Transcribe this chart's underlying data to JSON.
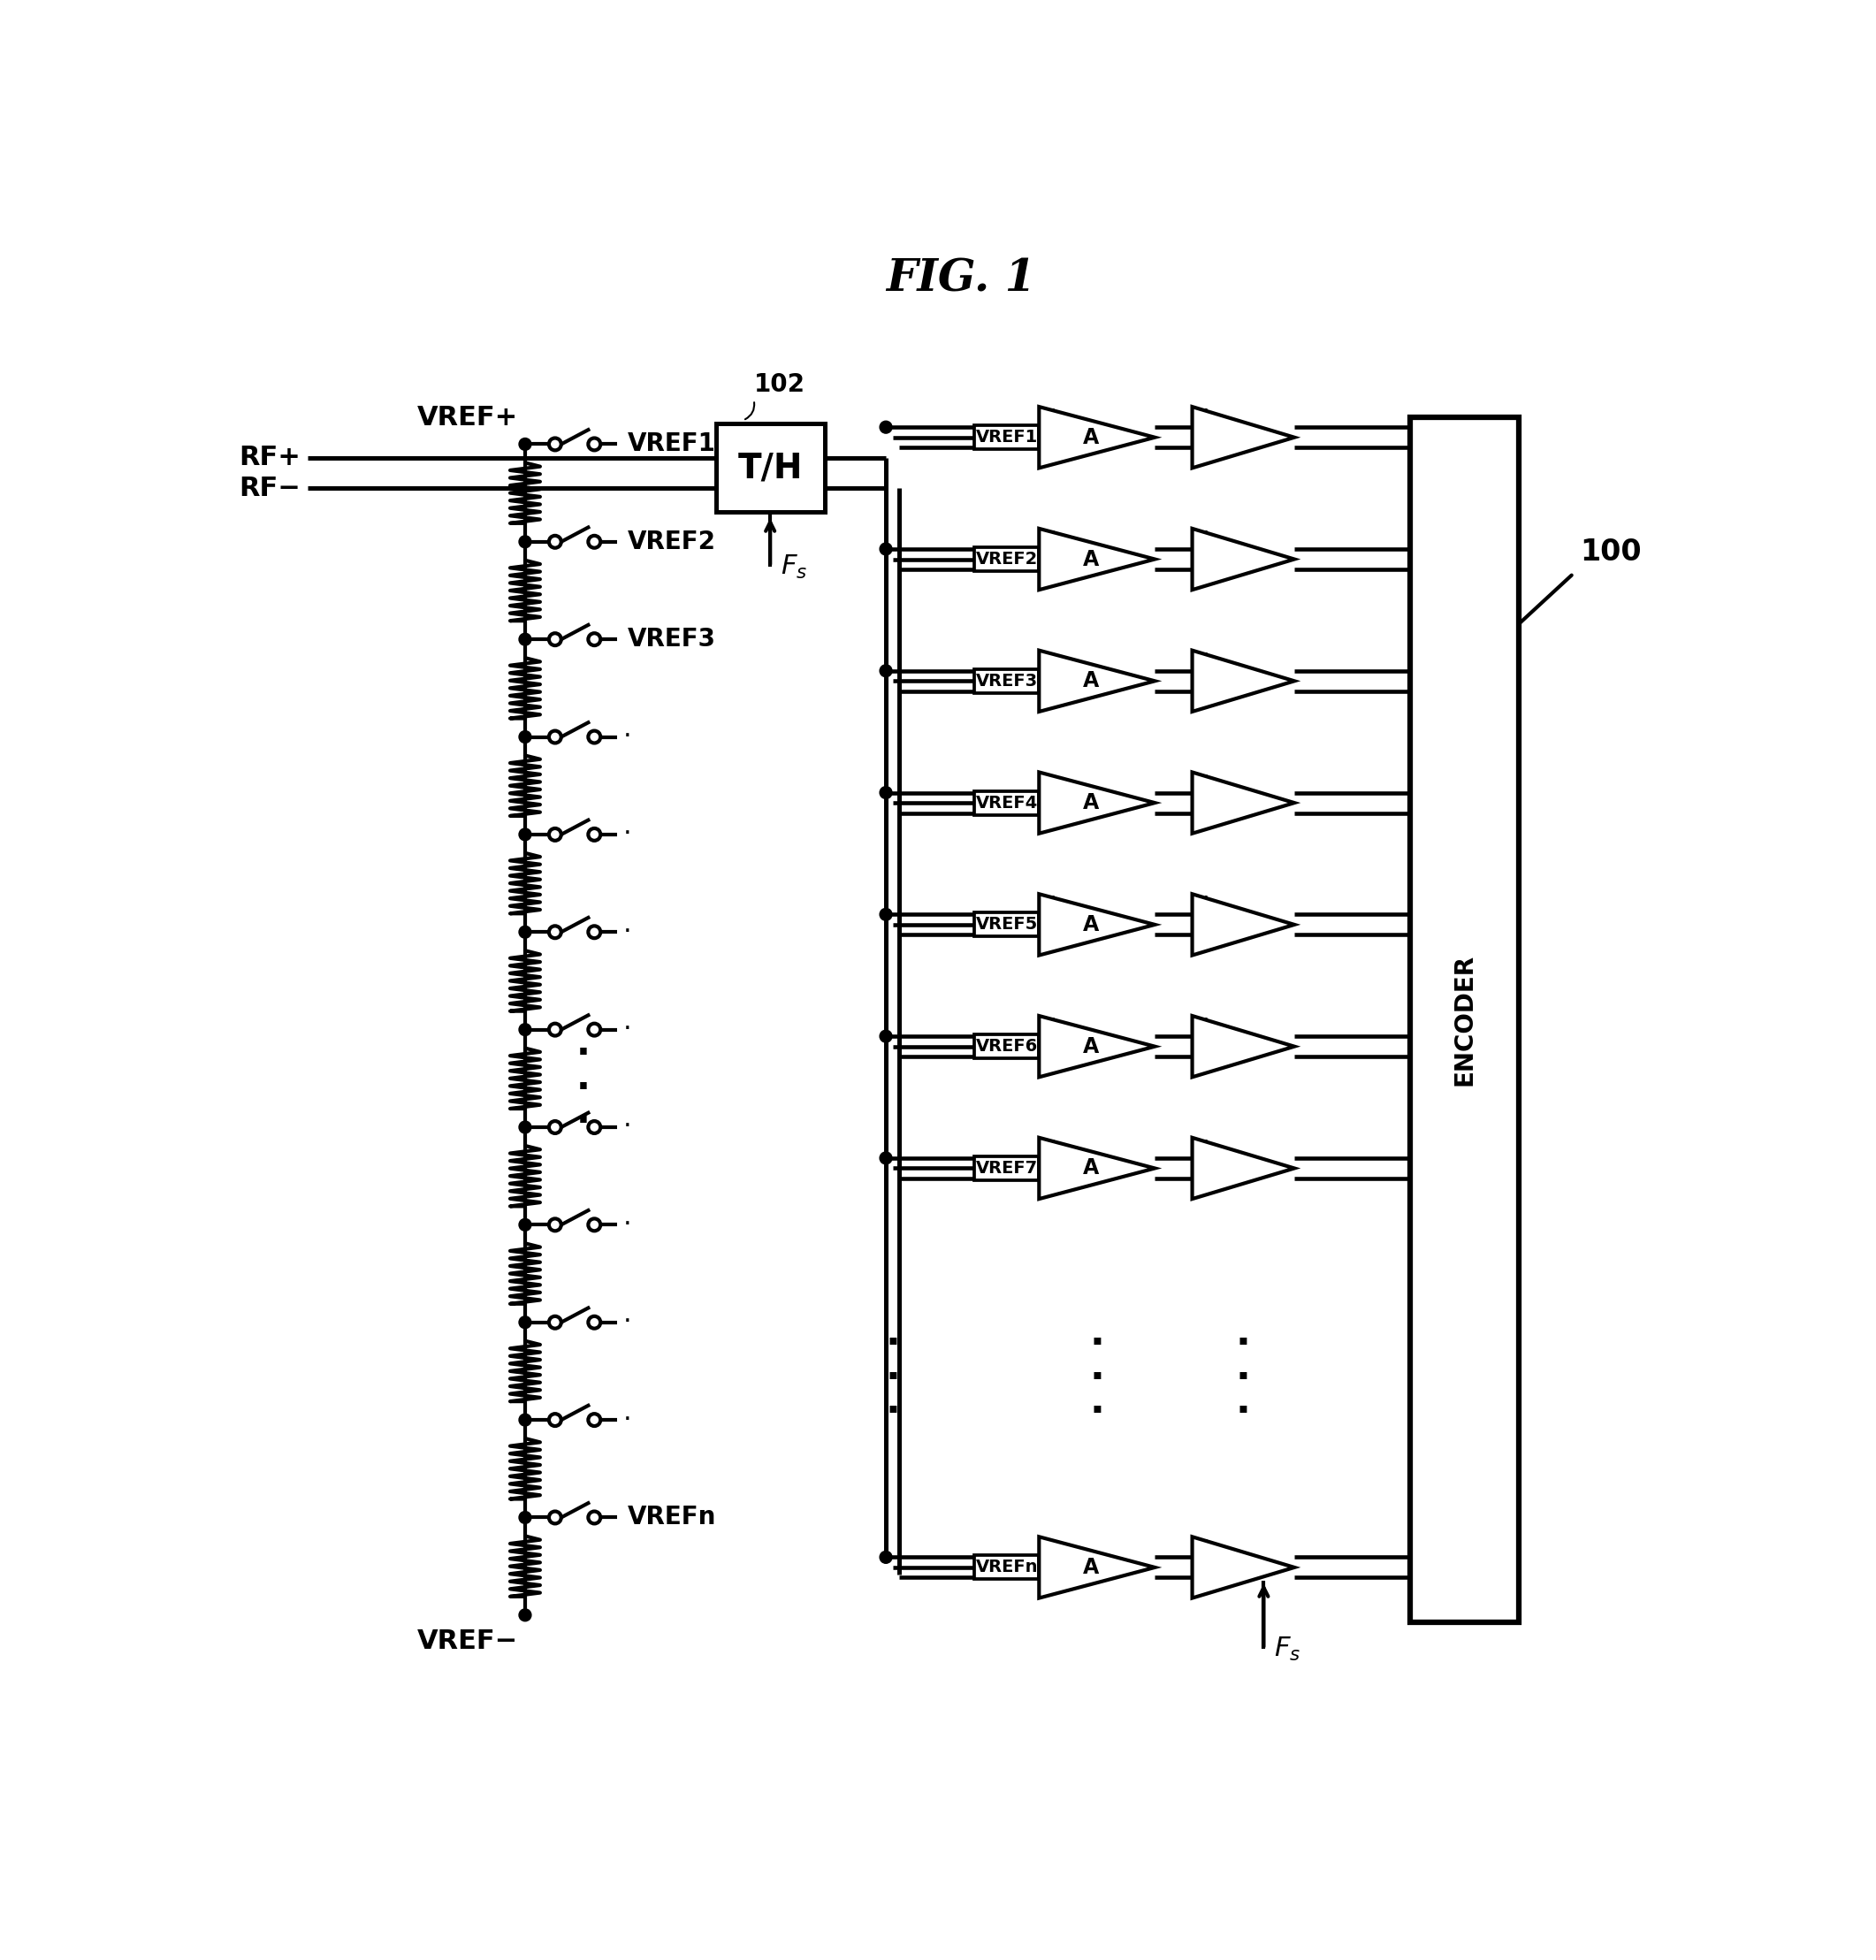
{
  "title": "FIG. 1",
  "label_100": "100",
  "label_102": "102",
  "label_TH": "T/H",
  "label_Fs": "F_s",
  "label_RF_plus": "RF+",
  "label_RF_minus": "RF−",
  "label_VREF_plus": "VREF+",
  "label_VREF_minus": "VREF−",
  "label_ENCODER": "ENCODER",
  "amp_labels": [
    "VREF1",
    "VREF2",
    "VREF3",
    "VREF4",
    "VREF5",
    "VREF6",
    "VREF7",
    "VREFn"
  ],
  "switch_labels": [
    "VREF1",
    "VREF2",
    "VREF3",
    "",
    "",
    "",
    "",
    "",
    "",
    "",
    "",
    "VREFn"
  ],
  "num_rows": 8,
  "num_resistors": 12,
  "bg_color": "#ffffff",
  "line_color": "#000000",
  "lw": 3.0
}
